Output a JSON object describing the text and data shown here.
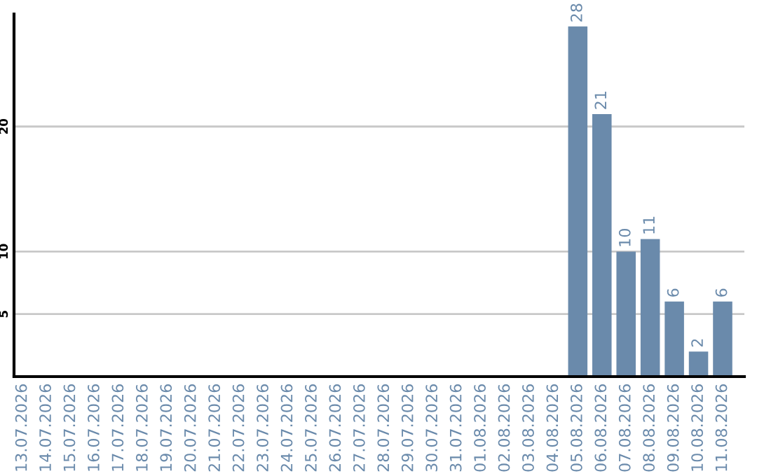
{
  "chart_data": {
    "type": "bar",
    "categories": [
      "13.07.2026",
      "14.07.2026",
      "15.07.2026",
      "16.07.2026",
      "17.07.2026",
      "18.07.2026",
      "19.07.2026",
      "20.07.2026",
      "21.07.2026",
      "22.07.2026",
      "23.07.2026",
      "24.07.2026",
      "25.07.2026",
      "26.07.2026",
      "27.07.2026",
      "28.07.2026",
      "29.07.2026",
      "30.07.2026",
      "31.07.2026",
      "01.08.2026",
      "02.08.2026",
      "03.08.2026",
      "04.08.2026",
      "05.08.2026",
      "06.08.2026",
      "07.08.2026",
      "08.08.2026",
      "09.08.2026",
      "10.08.2026",
      "11.08.2026"
    ],
    "values": [
      0,
      0,
      0,
      0,
      0,
      0,
      0,
      0,
      0,
      0,
      0,
      0,
      0,
      0,
      0,
      0,
      0,
      0,
      0,
      0,
      0,
      0,
      0,
      28,
      21,
      10,
      11,
      6,
      2,
      6
    ],
    "value_labels": [
      null,
      null,
      null,
      null,
      null,
      null,
      null,
      null,
      null,
      null,
      null,
      null,
      null,
      null,
      null,
      null,
      null,
      null,
      null,
      null,
      null,
      null,
      null,
      "28",
      "21",
      "10",
      "11",
      "6",
      "2",
      "6"
    ],
    "color": "#6a8aab",
    "ylim": [
      0,
      29
    ],
    "yticks": [
      5,
      10,
      20
    ],
    "grid": "y"
  }
}
